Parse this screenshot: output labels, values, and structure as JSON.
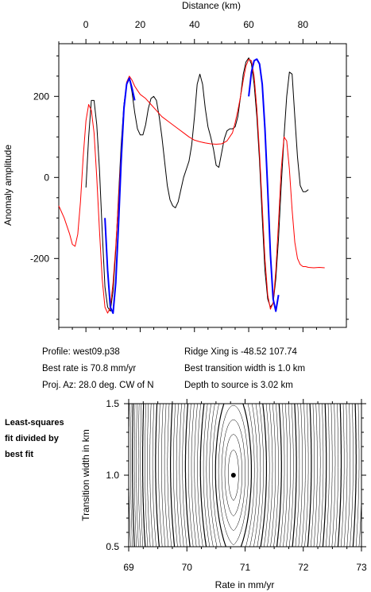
{
  "chart_data": [
    {
      "type": "line",
      "title": "",
      "xlabel": "Distance (km)",
      "ylabel": "Anomaly amplitude",
      "xlim": [
        -10,
        96
      ],
      "ylim": [
        -370,
        330
      ],
      "x_ticks": [
        0,
        20,
        40,
        60,
        80
      ],
      "y_ticks": [
        -200,
        0,
        200
      ],
      "grid": false,
      "series": [
        {
          "color": "#000000",
          "x": [
            0,
            1,
            2,
            3,
            4,
            5,
            6,
            7,
            8,
            9,
            10,
            11,
            12,
            13,
            14,
            15,
            16,
            17,
            18,
            19,
            20,
            21,
            22,
            23,
            24,
            25,
            26,
            27,
            28,
            29,
            30,
            31,
            32,
            33,
            34,
            35,
            36,
            37,
            38,
            39,
            40,
            41,
            42,
            43,
            44,
            45,
            46,
            47,
            48,
            49,
            50,
            51,
            52,
            53,
            54,
            55,
            56,
            57,
            58,
            59,
            60,
            61,
            62,
            63,
            64,
            65,
            66,
            67,
            68,
            69,
            70,
            71,
            72,
            73,
            74,
            75,
            76,
            77,
            78,
            79,
            80,
            81,
            82
          ],
          "y": [
            -25,
            100,
            190,
            190,
            130,
            20,
            -130,
            -270,
            -320,
            -330,
            -280,
            -180,
            -50,
            80,
            180,
            230,
            245,
            210,
            160,
            120,
            105,
            105,
            130,
            170,
            195,
            200,
            190,
            150,
            100,
            40,
            -20,
            -55,
            -70,
            -75,
            -60,
            -30,
            0,
            20,
            40,
            80,
            150,
            230,
            255,
            230,
            170,
            125,
            100,
            70,
            30,
            25,
            60,
            95,
            115,
            120,
            120,
            125,
            150,
            200,
            255,
            285,
            295,
            280,
            230,
            150,
            40,
            -100,
            -230,
            -300,
            -320,
            -310,
            -250,
            -150,
            -20,
            100,
            200,
            260,
            255,
            150,
            50,
            -20,
            -35,
            -35,
            -30
          ]
        },
        {
          "color": "#ff0000",
          "x": [
            -10,
            -8,
            -6,
            -5,
            -4,
            -3,
            -2,
            -1,
            0,
            1,
            2,
            3,
            4,
            5,
            6,
            7,
            8,
            9,
            10,
            11,
            12,
            13,
            14,
            15,
            16,
            17,
            18,
            19,
            20,
            22,
            24,
            26,
            28,
            30,
            32,
            34,
            36,
            38,
            40,
            42,
            44,
            46,
            48,
            50,
            52,
            54,
            55,
            56,
            57,
            58,
            59,
            60,
            61,
            62,
            63,
            64,
            65,
            66,
            67,
            68,
            69,
            70,
            71,
            72,
            73,
            74,
            75,
            76,
            77,
            78,
            79,
            80,
            81,
            82,
            84,
            86,
            88
          ],
          "y": [
            -70,
            -100,
            -140,
            -165,
            -170,
            -140,
            -60,
            50,
            140,
            180,
            165,
            110,
            0,
            -130,
            -250,
            -320,
            -335,
            -320,
            -260,
            -170,
            -60,
            60,
            170,
            235,
            250,
            240,
            225,
            215,
            205,
            195,
            180,
            165,
            150,
            140,
            130,
            120,
            110,
            100,
            92,
            88,
            85,
            83,
            82,
            83,
            90,
            110,
            135,
            165,
            200,
            240,
            275,
            292,
            288,
            250,
            170,
            60,
            -70,
            -200,
            -290,
            -325,
            -310,
            -230,
            -110,
            20,
            100,
            90,
            20,
            -80,
            -160,
            -200,
            -215,
            -220,
            -220,
            -222,
            -223,
            -222,
            -223
          ]
        },
        {
          "color": "#0000ff",
          "x": [
            7,
            8,
            9,
            10,
            11,
            12,
            13,
            14,
            15,
            16,
            17,
            18
          ],
          "y": [
            -100,
            -230,
            -320,
            -335,
            -260,
            -120,
            40,
            170,
            230,
            245,
            220,
            190
          ]
        },
        {
          "color": "#0000ff",
          "x": [
            60,
            61,
            62,
            63,
            64,
            65,
            66,
            67,
            68,
            69,
            70,
            71
          ],
          "y": [
            200,
            260,
            288,
            292,
            280,
            230,
            120,
            -30,
            -190,
            -300,
            -330,
            -290
          ]
        }
      ]
    },
    {
      "type": "contour",
      "title": "",
      "xlabel": "Rate in mm/yr",
      "ylabel": "Transition width in km",
      "xlim": [
        69,
        73
      ],
      "ylim": [
        0.5,
        1.5
      ],
      "x_ticks": [
        69,
        70,
        71,
        72,
        73
      ],
      "y_ticks": [
        0.5,
        1.0,
        1.5
      ],
      "best_fit_point": {
        "rate": 70.8,
        "width": 1.0
      },
      "grid": false
    }
  ],
  "profile_info": {
    "profile": "Profile: west09.p38",
    "best_rate": "Best rate is 70.8 mm/yr",
    "proj_az": "Proj. Az: 28.0 deg. CW of N",
    "ridge_xing": "Ridge Xing is -48.52 107.74",
    "best_transition": "Best transition width is 1.0 km",
    "depth": "Depth to source is   3.02 km"
  },
  "contour_note": "Least-squares\nfit divided by\nbest fit"
}
